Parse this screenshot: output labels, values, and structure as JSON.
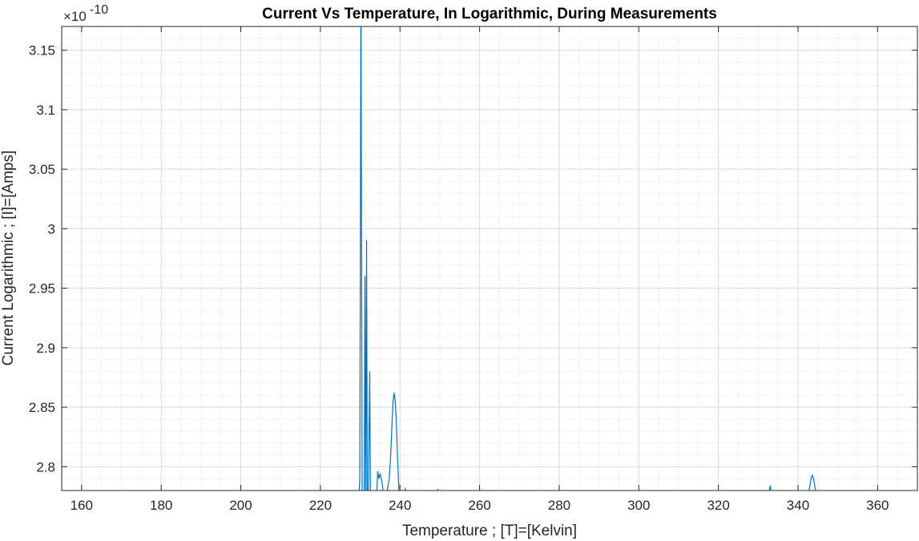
{
  "chart_data": {
    "type": "line",
    "title": "Current Vs Temperature, In Logarithmic, During Measurements",
    "xlabel": "Temperature ; [T]=[Kelvin]",
    "ylabel": "Current Logarithmic ; [I]=[Amps]",
    "y_exponent_label": "×10",
    "y_exponent_power": "-10",
    "xlim": [
      155,
      370
    ],
    "ylim": [
      2.78,
      3.17
    ],
    "y_scale_factor": 1e-10,
    "x_ticks": [
      160,
      180,
      200,
      220,
      240,
      260,
      280,
      300,
      320,
      340,
      360
    ],
    "x_tick_labels": [
      "160",
      "180",
      "200",
      "220",
      "240",
      "260",
      "280",
      "300",
      "320",
      "340",
      "360"
    ],
    "y_ticks": [
      2.8,
      2.85,
      2.9,
      2.95,
      3.0,
      3.05,
      3.1,
      3.15
    ],
    "y_tick_labels": [
      "2.8",
      "2.85",
      "2.9",
      "2.95",
      "3",
      "3.05",
      "3.1",
      "3.15"
    ],
    "grid": true,
    "minor_grid": true,
    "legend": "none",
    "series_color": "#0072BD",
    "series": [
      {
        "x": [
          229.0,
          229.5,
          229.9,
          230.2,
          230.5,
          230.8,
          231.0,
          231.2,
          231.4,
          231.6,
          231.8,
          232.0,
          232.2,
          232.4,
          232.6,
          232.8,
          233.0,
          233.3,
          233.6,
          234.0,
          234.4,
          234.7,
          235.0,
          235.3,
          235.6,
          235.9,
          236.2,
          236.6,
          237.0,
          237.3,
          237.6,
          237.9,
          238.2,
          238.5,
          238.8,
          239.1,
          239.4,
          239.8,
          240.2,
          240.6,
          241.0,
          241.3,
          241.6,
          242.0,
          245.0,
          248.0,
          249.0,
          249.5,
          250.0,
          255.0,
          300.0,
          332.0,
          332.6,
          333.0,
          333.4,
          334.0,
          340.0,
          342.5,
          343.0,
          343.3,
          343.6,
          343.9,
          344.3,
          344.8,
          346.0,
          360.0
        ],
        "y": [
          2.76,
          2.76,
          2.79,
          3.2,
          2.76,
          2.76,
          2.76,
          2.96,
          2.76,
          2.99,
          2.76,
          2.76,
          2.82,
          2.88,
          2.76,
          2.76,
          2.76,
          2.76,
          2.76,
          2.765,
          2.796,
          2.79,
          2.794,
          2.79,
          2.784,
          2.776,
          2.77,
          2.776,
          2.784,
          2.79,
          2.806,
          2.828,
          2.852,
          2.862,
          2.856,
          2.836,
          2.806,
          2.776,
          2.77,
          2.77,
          2.77,
          2.782,
          2.77,
          2.77,
          2.77,
          2.77,
          2.776,
          2.781,
          2.776,
          2.77,
          2.77,
          2.77,
          2.776,
          2.784,
          2.776,
          2.77,
          2.77,
          2.776,
          2.784,
          2.79,
          2.793,
          2.79,
          2.782,
          2.776,
          2.77,
          2.77
        ]
      }
    ]
  }
}
